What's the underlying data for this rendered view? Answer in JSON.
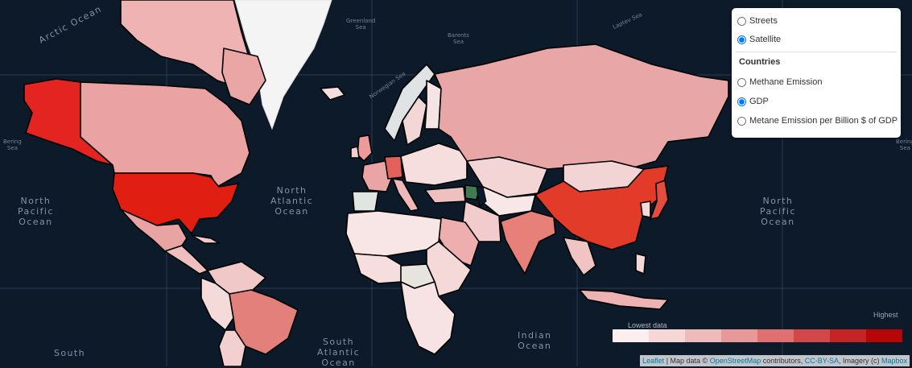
{
  "layers": {
    "base": [
      {
        "label": "Streets",
        "checked": false
      },
      {
        "label": "Satellite",
        "checked": true
      }
    ],
    "overlay_heading": "Countries",
    "overlays": [
      {
        "label": "Methane Emission",
        "checked": false
      },
      {
        "label": "GDP",
        "checked": true
      },
      {
        "label": "Metane Emission per Billion $ of GDP",
        "checked": false
      }
    ]
  },
  "oceans": {
    "arctic": "Arctic Ocean",
    "north_pacific_left": [
      "North",
      "Pacific",
      "Ocean"
    ],
    "north_atlantic": [
      "North",
      "Atlantic",
      "Ocean"
    ],
    "north_pacific_right": [
      "North",
      "Pacific",
      "Ocean"
    ],
    "south_pacific": [
      "South"
    ],
    "south_atlantic": [
      "South",
      "Atlantic",
      "Ocean"
    ],
    "indian": [
      "Indian",
      "Ocean"
    ]
  },
  "seas": {
    "greenland": [
      "Greenland",
      "Sea"
    ],
    "barents": [
      "Barents",
      "Sea"
    ],
    "laptev": [
      "Laptev Sea"
    ],
    "norwegian": "Norwegian Sea",
    "bering": [
      "Bering",
      "Sea"
    ],
    "bering_right": [
      "Bering",
      "Sea"
    ]
  },
  "legend": {
    "high_label": "Highest",
    "low_label": "Lowest data",
    "colors": [
      "#fbeeee",
      "#f6d6d6",
      "#efbaba",
      "#e89898",
      "#de7070",
      "#d24848",
      "#c42424",
      "#b80606"
    ]
  },
  "attribution": {
    "leaflet": "Leaflet",
    "sep": " | Map data © ",
    "osm": "OpenStreetMap",
    "contrib": " contributors, ",
    "license": "CC-BY-SA",
    "imagery": ", Imagery (c) ",
    "mapbox": "Mapbox"
  }
}
